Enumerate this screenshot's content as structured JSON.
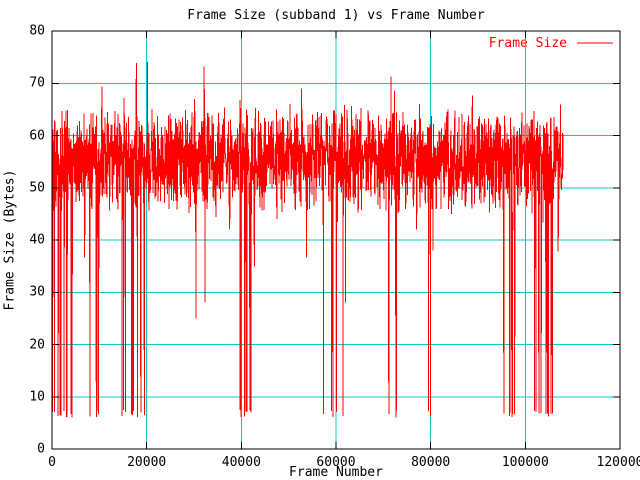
{
  "chart_data": {
    "type": "line",
    "title": "Frame Size (subband 1) vs Frame Number",
    "xlabel": "Frame Number",
    "ylabel": "Frame Size (Bytes)",
    "xlim": [
      0,
      120000
    ],
    "ylim": [
      0,
      80
    ],
    "xticks": [
      0,
      20000,
      40000,
      60000,
      80000,
      100000,
      120000
    ],
    "xtick_labels": [
      "0",
      "20000",
      "40000",
      "60000",
      "80000",
      "100000",
      "120000"
    ],
    "yticks": [
      0,
      10,
      20,
      30,
      40,
      50,
      60,
      70,
      80
    ],
    "ytick_labels": [
      "0",
      "10",
      "20",
      "30",
      "40",
      "50",
      "60",
      "70",
      "80"
    ],
    "grid": true,
    "legend": {
      "position": "top-right-inside",
      "entries": [
        "Frame Size"
      ]
    },
    "series": [
      {
        "name": "Frame Size",
        "color": "#ff0000"
      }
    ],
    "colors": {
      "background": "#ffffff",
      "border": "#000000",
      "grid": "#00cccc",
      "text": "#000000",
      "series": "#ff0000"
    },
    "data_summary": {
      "x_start": 0,
      "x_end": 108000,
      "sample_step": 50,
      "band_mean": 55.5,
      "band_min": 44,
      "band_max": 68,
      "peak_max": 78.5,
      "dropout_value": 6,
      "dropout_clusters": [
        [
          0,
          4400
        ],
        [
          6700,
          10700
        ],
        [
          14800,
          22000
        ],
        [
          39400,
          42200
        ],
        [
          55100,
          61900
        ],
        [
          70700,
          73900
        ],
        [
          78300,
          81900
        ],
        [
          88900,
          93100
        ],
        [
          94600,
          97800
        ],
        [
          101900,
          105800
        ]
      ],
      "mid_dips": [
        [
          30400,
          25
        ],
        [
          32300,
          28
        ],
        [
          62000,
          28
        ]
      ]
    },
    "generator": {
      "seed": 20481,
      "amp": 11,
      "peak_prob": 0.015,
      "peak_add": [
        4,
        12
      ],
      "dip_prob": 0.012,
      "dip_sub": [
        10,
        16
      ],
      "cluster_prob": 0.05,
      "dense_cluster": {
        "range": [
          14800,
          22000
        ],
        "prob": 0.08
      },
      "boost": {
        "range": [
          15500,
          20500
        ],
        "prob": 0.05,
        "add": [
          6,
          14
        ]
      }
    }
  }
}
